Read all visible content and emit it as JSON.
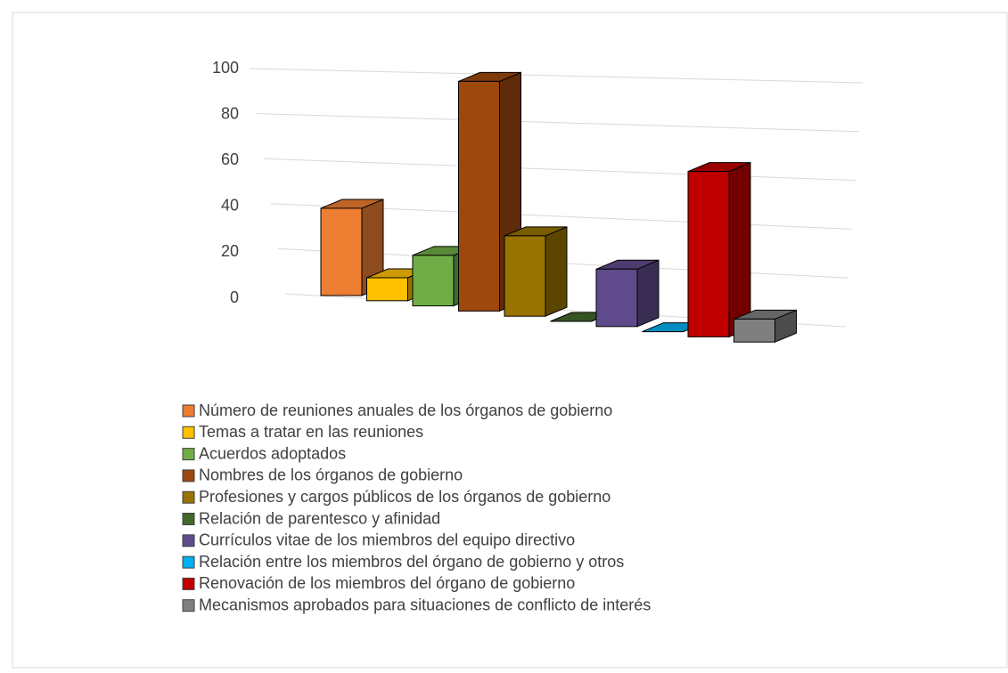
{
  "chart_data": {
    "type": "bar3d",
    "categories": [
      "Número de reuniones anuales de los órganos de gobierno",
      "Temas a tratar en las reuniones",
      "Acuerdos adoptados",
      "Nombres de los órganos de gobierno",
      "Profesiones y cargos públicos de los órganos de gobierno",
      "Relación de parentesco y afinidad",
      "Currículos vitae de los miembros del equipo directivo",
      "Relación entre los miembros del órgano de gobierno y otros",
      "Renovación de los miembros del órgano de gobierno",
      "Mecanismos aprobados para situaciones de conflicto de interés"
    ],
    "values": [
      38,
      10,
      22,
      100,
      35,
      0,
      25,
      0,
      72,
      10
    ],
    "colors": [
      "#ed7d31",
      "#ffc000",
      "#70ad47",
      "#9e480e",
      "#997300",
      "#43682b",
      "#5f4b8b",
      "#00b0f0",
      "#c00000",
      "#7f7f7f"
    ],
    "ylim": [
      0,
      100
    ],
    "yticks": [
      0,
      20,
      40,
      60,
      80,
      100
    ],
    "grid": true,
    "legend": "bottom"
  }
}
